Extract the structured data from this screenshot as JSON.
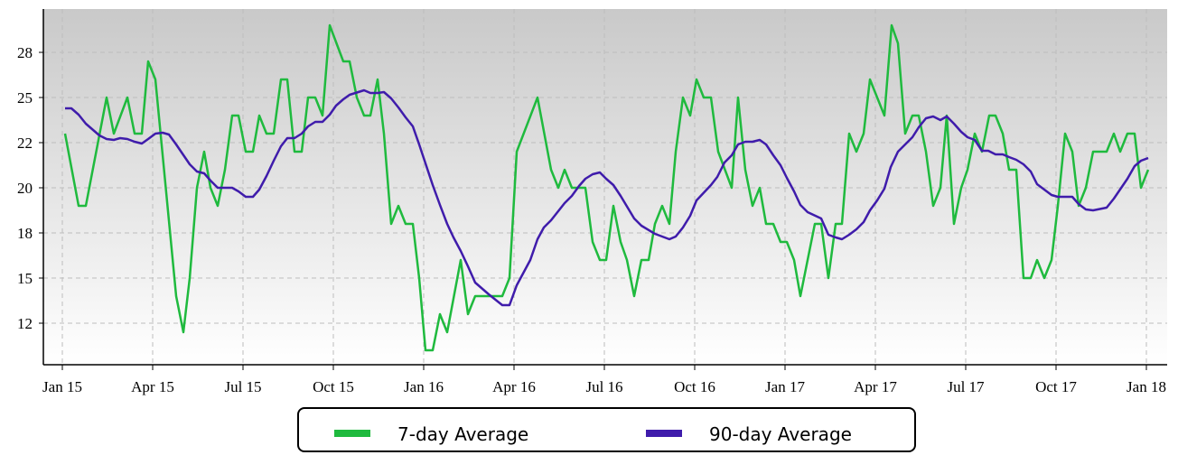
{
  "chart_data": {
    "type": "line",
    "xlim": [
      -0.63,
      36.69
    ],
    "ylim": [
      10.2,
      29.9
    ],
    "xticks": [
      {
        "value": 0,
        "label": "Jan 15"
      },
      {
        "value": 3,
        "label": "Apr 15"
      },
      {
        "value": 6,
        "label": "Jul 15"
      },
      {
        "value": 9,
        "label": "Oct 15"
      },
      {
        "value": 12,
        "label": "Jan 16"
      },
      {
        "value": 15,
        "label": "Apr 16"
      },
      {
        "value": 18,
        "label": "Jul 16"
      },
      {
        "value": 21,
        "label": "Oct 16"
      },
      {
        "value": 24,
        "label": "Jan 17"
      },
      {
        "value": 27,
        "label": "Apr 17"
      },
      {
        "value": 30,
        "label": "Jul 17"
      },
      {
        "value": 33,
        "label": "Oct 17"
      },
      {
        "value": 36,
        "label": "Jan 18"
      }
    ],
    "yticks": [
      {
        "value": 12.5,
        "label": "12"
      },
      15,
      {
        "value": 17.5,
        "label": "18"
      },
      20,
      {
        "value": 22.5,
        "label": "22"
      },
      25,
      {
        "value": 27.5,
        "label": "28"
      }
    ],
    "grid": true,
    "series": [
      {
        "name": "7-day Average",
        "color": "#1fba3e",
        "x": [
          0.09,
          0.54,
          0.78,
          1.47,
          1.71,
          2.16,
          2.4,
          2.64,
          2.85,
          3.09,
          3.78,
          4.02,
          4.23,
          4.47,
          4.71,
          4.92,
          5.16,
          5.4,
          5.64,
          5.85,
          6.09,
          6.33,
          6.54,
          6.78,
          7.02,
          7.26,
          7.47,
          7.71,
          7.95,
          8.16,
          8.4,
          8.64,
          8.88,
          9.33,
          9.54,
          9.78,
          10.02,
          10.23,
          10.47,
          10.68,
          10.92,
          11.16,
          11.4,
          11.64,
          11.85,
          12.06,
          12.3,
          12.54,
          12.78,
          13.23,
          13.47,
          13.71,
          13.95,
          14.37,
          14.61,
          14.85,
          15.09,
          15.78,
          16.23,
          16.47,
          16.68,
          16.92,
          17.37,
          17.61,
          17.85,
          18.06,
          18.3,
          18.54,
          18.75,
          18.99,
          19.23,
          19.47,
          19.68,
          19.92,
          20.16,
          20.37,
          20.61,
          20.85,
          21.06,
          21.3,
          21.54,
          21.78,
          22.23,
          22.44,
          22.68,
          22.92,
          23.16,
          23.37,
          23.61,
          23.85,
          24.06,
          24.3,
          24.51,
          24.99,
          25.2,
          25.44,
          25.68,
          25.89,
          26.13,
          26.37,
          26.61,
          26.82,
          27.3,
          27.54,
          27.75,
          27.99,
          28.23,
          28.44,
          28.68,
          28.92,
          29.16,
          29.37,
          29.61,
          29.85,
          30.06,
          30.3,
          30.54,
          30.78,
          30.99,
          31.23,
          31.44,
          31.68,
          31.92,
          32.16,
          32.37,
          32.61,
          32.85,
          33.06,
          33.3,
          33.54,
          33.75,
          33.99,
          34.23,
          34.47,
          34.68,
          34.92,
          35.13,
          35.37,
          35.61,
          35.82,
          36.06
        ],
        "values": [
          23,
          19,
          19,
          25,
          23,
          25,
          23,
          23,
          27,
          26,
          14,
          12,
          15,
          20,
          22,
          20,
          19,
          21,
          24,
          24,
          22,
          22,
          24,
          23,
          23,
          26,
          26,
          22,
          22,
          25,
          25,
          24,
          29,
          27,
          27,
          25,
          24,
          24,
          26,
          23,
          18,
          19,
          18,
          18,
          15,
          11,
          11,
          13,
          12,
          16,
          13,
          14,
          14,
          14,
          14,
          15,
          22,
          25,
          21,
          20,
          21,
          20,
          20,
          17,
          16,
          16,
          19,
          17,
          16,
          14,
          16,
          16,
          18,
          19,
          18,
          22,
          25,
          24,
          26,
          25,
          25,
          22,
          20,
          25,
          21,
          19,
          20,
          18,
          18,
          17,
          17,
          16,
          14,
          18,
          18,
          15,
          18,
          18,
          23,
          22,
          23,
          26,
          24,
          29,
          28,
          23,
          24,
          24,
          22,
          19,
          20,
          24,
          18,
          20,
          21,
          23,
          22,
          24,
          24,
          23,
          21,
          21,
          15,
          15,
          16,
          15,
          16,
          19,
          23,
          22,
          19,
          20,
          22,
          22,
          22,
          23,
          22,
          23,
          23,
          20,
          21
        ]
      },
      {
        "name": "90-day Average",
        "color": "#3f1cab",
        "x": [
          0.09,
          0.3,
          0.54,
          0.78,
          1.23,
          1.47,
          1.71,
          1.92,
          2.16,
          2.4,
          2.64,
          2.85,
          3.09,
          3.33,
          3.54,
          3.78,
          4.23,
          4.47,
          4.71,
          4.92,
          5.16,
          5.64,
          5.85,
          6.09,
          6.33,
          6.54,
          6.78,
          7.02,
          7.26,
          7.47,
          7.71,
          7.95,
          8.16,
          8.4,
          8.64,
          8.88,
          9.09,
          9.33,
          9.54,
          10.02,
          10.23,
          10.47,
          10.68,
          10.92,
          11.16,
          11.4,
          11.64,
          11.85,
          12.3,
          12.54,
          12.78,
          12.99,
          13.23,
          13.47,
          13.71,
          14.16,
          14.61,
          14.85,
          15.09,
          15.54,
          15.78,
          15.99,
          16.23,
          16.68,
          16.92,
          17.16,
          17.37,
          17.61,
          17.85,
          18.06,
          18.3,
          18.54,
          18.99,
          19.23,
          19.68,
          20.16,
          20.37,
          20.61,
          20.85,
          21.06,
          21.54,
          21.75,
          21.99,
          22.23,
          22.44,
          22.68,
          22.92,
          23.16,
          23.37,
          23.61,
          23.85,
          24.06,
          24.3,
          24.51,
          24.75,
          25.2,
          25.44,
          25.68,
          25.89,
          26.13,
          26.37,
          26.61,
          26.82,
          27.06,
          27.3,
          27.51,
          27.75,
          27.99,
          28.23,
          28.44,
          28.68,
          28.92,
          29.16,
          29.37,
          29.61,
          29.85,
          30.06,
          30.3,
          30.54,
          30.75,
          30.99,
          31.23,
          31.44,
          31.68,
          31.92,
          32.16,
          32.37,
          32.61,
          32.85,
          33.06,
          33.54,
          33.75,
          33.99,
          34.23,
          34.68,
          34.92,
          35.37,
          35.61,
          35.82,
          36.06
        ],
        "values": [
          24.4,
          24.4,
          24.05,
          23.55,
          22.9,
          22.7,
          22.65,
          22.75,
          22.7,
          22.55,
          22.45,
          22.7,
          23.0,
          23.05,
          22.95,
          22.4,
          21.3,
          20.9,
          20.8,
          20.4,
          20.0,
          20.0,
          19.8,
          19.5,
          19.5,
          19.9,
          20.65,
          21.5,
          22.3,
          22.75,
          22.75,
          23.0,
          23.4,
          23.65,
          23.65,
          24.05,
          24.55,
          24.9,
          25.15,
          25.4,
          25.25,
          25.25,
          25.3,
          24.95,
          24.45,
          23.9,
          23.4,
          22.4,
          20.15,
          19.05,
          18.0,
          17.25,
          16.5,
          15.65,
          14.75,
          14.1,
          13.5,
          13.5,
          14.6,
          16.0,
          17.15,
          17.8,
          18.2,
          19.15,
          19.55,
          20.1,
          20.5,
          20.75,
          20.85,
          20.5,
          20.15,
          19.55,
          18.3,
          17.9,
          17.45,
          17.15,
          17.3,
          17.8,
          18.45,
          19.3,
          20.15,
          20.6,
          21.4,
          21.8,
          22.4,
          22.55,
          22.55,
          22.65,
          22.4,
          21.8,
          21.25,
          20.55,
          19.8,
          19.05,
          18.65,
          18.3,
          17.4,
          17.25,
          17.15,
          17.4,
          17.7,
          18.1,
          18.75,
          19.3,
          19.95,
          21.15,
          22.0,
          22.4,
          22.8,
          23.35,
          23.85,
          23.95,
          23.75,
          23.95,
          23.55,
          23.1,
          22.8,
          22.65,
          22.05,
          22.05,
          21.85,
          21.85,
          21.7,
          21.55,
          21.3,
          20.9,
          20.2,
          19.9,
          19.6,
          19.5,
          19.5,
          19.1,
          18.8,
          18.75,
          18.9,
          19.4,
          20.5,
          21.2,
          21.5,
          21.65
        ]
      }
    ]
  }
}
